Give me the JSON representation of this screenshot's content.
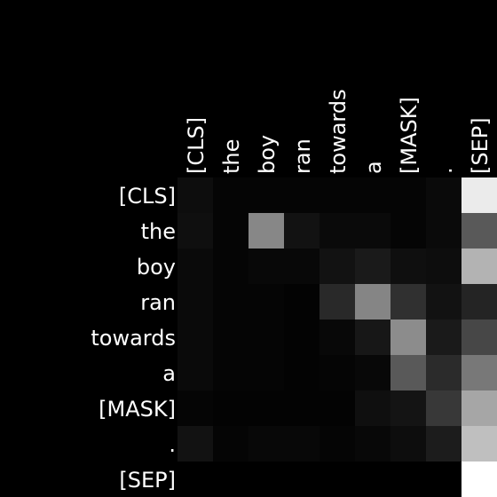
{
  "chart_data": {
    "type": "heatmap",
    "title": "",
    "xlabel": "",
    "ylabel": "",
    "x_labels": [
      "[CLS]",
      "the",
      "boy",
      "ran",
      "towards",
      "a",
      "[MASK]",
      ".",
      "[SEP]"
    ],
    "y_labels": [
      "[CLS]",
      "the",
      "boy",
      "ran",
      "towards",
      "a",
      "[MASK]",
      ".",
      "[SEP]"
    ],
    "colormap": "grayscale (black = 0, white = 1)",
    "value_range": [
      0,
      1
    ],
    "values": [
      [
        0.05,
        0.02,
        0.02,
        0.02,
        0.02,
        0.02,
        0.02,
        0.04,
        0.92
      ],
      [
        0.06,
        0.02,
        0.53,
        0.07,
        0.04,
        0.04,
        0.02,
        0.04,
        0.35
      ],
      [
        0.04,
        0.02,
        0.03,
        0.03,
        0.07,
        0.1,
        0.06,
        0.05,
        0.7
      ],
      [
        0.04,
        0.02,
        0.02,
        0.01,
        0.16,
        0.52,
        0.19,
        0.07,
        0.14
      ],
      [
        0.04,
        0.02,
        0.02,
        0.01,
        0.03,
        0.09,
        0.55,
        0.1,
        0.28
      ],
      [
        0.04,
        0.02,
        0.02,
        0.01,
        0.02,
        0.03,
        0.35,
        0.17,
        0.47
      ],
      [
        0.02,
        0.01,
        0.01,
        0.01,
        0.01,
        0.06,
        0.08,
        0.22,
        0.65
      ],
      [
        0.07,
        0.02,
        0.03,
        0.03,
        0.02,
        0.03,
        0.05,
        0.11,
        0.75
      ],
      [
        0.0,
        0.0,
        0.0,
        0.0,
        0.0,
        0.0,
        0.0,
        0.0,
        1.0
      ]
    ]
  },
  "colors": {
    "background": "#000000",
    "text": "#ffffff"
  }
}
